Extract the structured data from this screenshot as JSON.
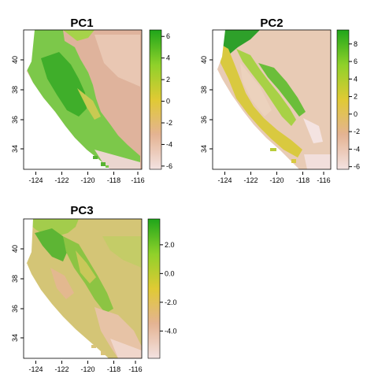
{
  "chart_data": [
    {
      "type": "heatmap",
      "title": "PC1",
      "x_ticks": [
        "-124",
        "-122",
        "-120",
        "-118",
        "-116"
      ],
      "y_ticks": [
        "34",
        "36",
        "38",
        "40"
      ],
      "xlim": [
        -124.9,
        -115.6
      ],
      "ylim": [
        32.6,
        42.0
      ],
      "legend": {
        "min": -6.3,
        "max": 6.6,
        "ticks": [
          "6",
          "4",
          "2",
          "0",
          "-2",
          "-4",
          "-6"
        ],
        "tick_values": [
          6,
          4,
          2,
          0,
          -2,
          -4,
          -6
        ]
      },
      "colors": [
        "#f3e2e1",
        "#e4b392",
        "#e0ca34",
        "#8fd12a",
        "#1fa51a"
      ]
    },
    {
      "type": "heatmap",
      "title": "PC2",
      "x_ticks": [
        "-124",
        "-122",
        "-120",
        "-118",
        "-116"
      ],
      "y_ticks": [
        "34",
        "36",
        "38",
        "40"
      ],
      "xlim": [
        -124.9,
        -115.6
      ],
      "ylim": [
        32.6,
        42.0
      ],
      "legend": {
        "min": -6.3,
        "max": 9.6,
        "ticks": [
          "8",
          "6",
          "4",
          "2",
          "0",
          "-2",
          "-4",
          "-6"
        ],
        "tick_values": [
          8,
          6,
          4,
          2,
          0,
          -2,
          -4,
          -6
        ]
      },
      "colors": [
        "#f3e2e1",
        "#e4b392",
        "#e0ca34",
        "#8fd12a",
        "#1fa51a"
      ]
    },
    {
      "type": "heatmap",
      "title": "PC3",
      "x_ticks": [
        "-124",
        "-122",
        "-120",
        "-118",
        "-116"
      ],
      "y_ticks": [
        "34",
        "36",
        "38",
        "40"
      ],
      "xlim": [
        -124.9,
        -115.6
      ],
      "ylim": [
        32.6,
        42.0
      ],
      "legend": {
        "min": -5.9,
        "max": 3.8,
        "ticks": [
          "2.0",
          "0.0",
          "-2.0",
          "-4.0"
        ],
        "tick_values": [
          2,
          0,
          -2,
          -4
        ]
      },
      "colors": [
        "#f3e2e1",
        "#e4b392",
        "#e0ca34",
        "#8fd12a",
        "#1fa51a"
      ]
    }
  ]
}
